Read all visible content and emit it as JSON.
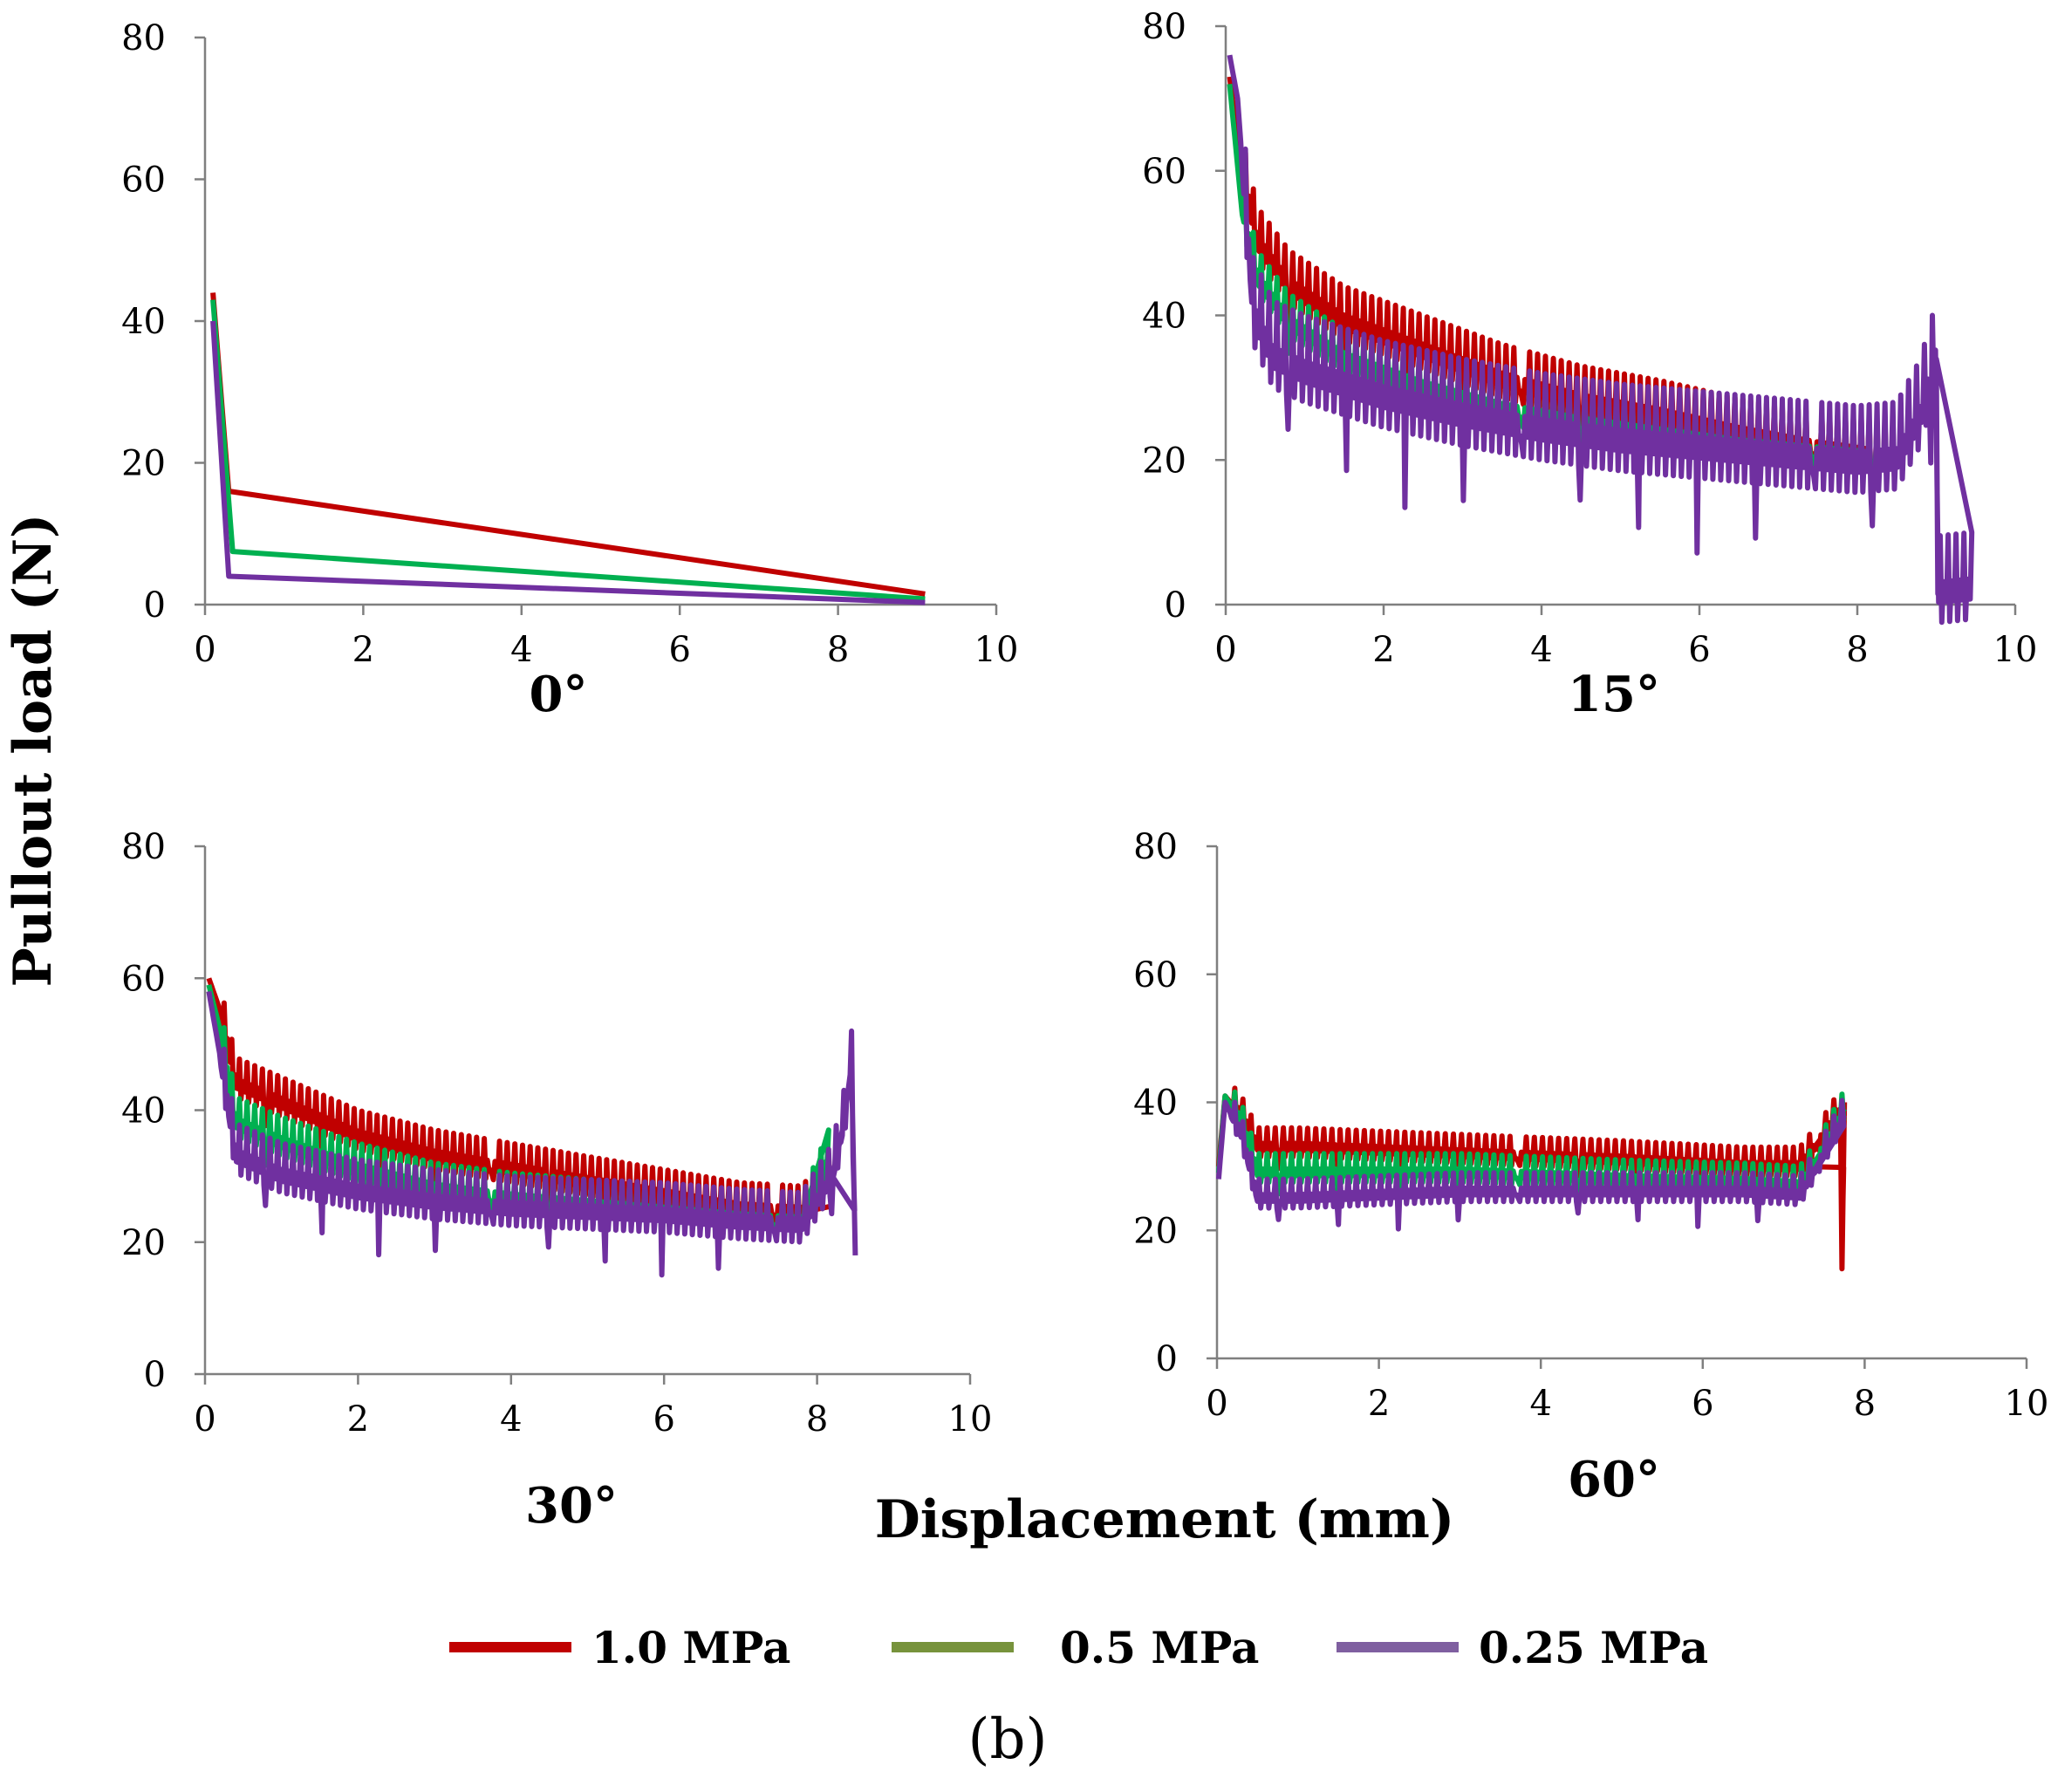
{
  "figure_label": "(b)",
  "ylabel": "Pullout load (N)",
  "xlabel": "Displacement (mm)",
  "legend": [
    {
      "label": "1.0 MPa",
      "color": "#c00000"
    },
    {
      "label": "0.5 MPa",
      "color": "#77933c"
    },
    {
      "label": "0.25 MPa",
      "color": "#7f5fa0"
    }
  ],
  "chart_data": [
    {
      "type": "line",
      "title": "0°",
      "xlabel": "Displacement (mm)",
      "ylabel": "Pullout load (N)",
      "xlim": [
        0,
        10
      ],
      "ylim": [
        0,
        80
      ],
      "xticks": [
        0,
        2,
        4,
        6,
        8,
        10
      ],
      "yticks": [
        0,
        20,
        40,
        60,
        80
      ],
      "series": [
        {
          "name": "1.0 MPa",
          "color": "#c00000",
          "points": [
            [
              0.1,
              44
            ],
            [
              0.3,
              16
            ],
            [
              9.1,
              1.5
            ]
          ]
        },
        {
          "name": "0.5 MPa",
          "color": "#00b050",
          "points": [
            [
              0.1,
              43
            ],
            [
              0.35,
              7.5
            ],
            [
              9.1,
              0.8
            ]
          ]
        },
        {
          "name": "0.25 MPa",
          "color": "#7030a0",
          "points": [
            [
              0.1,
              40
            ],
            [
              0.3,
              4
            ],
            [
              9.1,
              0.3
            ]
          ]
        }
      ]
    },
    {
      "type": "line",
      "title": "15°",
      "xlabel": "Displacement (mm)",
      "ylabel": "Pullout load (N)",
      "xlim": [
        0,
        10
      ],
      "ylim": [
        0,
        80
      ],
      "xticks": [
        0,
        2,
        4,
        6,
        8,
        10
      ],
      "yticks": [
        0,
        20,
        40,
        60,
        80
      ],
      "series": [
        {
          "name": "1.0 MPa",
          "color": "#c00000",
          "amp": 5,
          "points": [
            [
              0.05,
              73
            ],
            [
              0.2,
              60
            ],
            [
              0.4,
              50
            ],
            [
              0.8,
              44
            ],
            [
              1.5,
              39
            ],
            [
              2.5,
              35
            ],
            [
              3.5,
              31
            ],
            [
              4.5,
              28
            ],
            [
              5.5,
              26
            ],
            [
              6.5,
              23.5
            ],
            [
              7.5,
              21.5
            ],
            [
              8.5,
              20
            ]
          ]
        },
        {
          "name": "0.5 MPa",
          "color": "#00b050",
          "amp": 4,
          "points": [
            [
              0.05,
              72
            ],
            [
              0.2,
              55
            ],
            [
              0.4,
              45
            ],
            [
              0.8,
              39
            ],
            [
              1.5,
              34
            ],
            [
              2.5,
              30
            ],
            [
              3.5,
              27
            ],
            [
              4.5,
              25
            ],
            [
              5.5,
              23.5
            ],
            [
              6.5,
              22
            ],
            [
              7.5,
              21
            ],
            [
              8.5,
              20
            ]
          ]
        },
        {
          "name": "0.25 MPa",
          "color": "#7030a0",
          "amp": 8,
          "points": [
            [
              0.05,
              76
            ],
            [
              0.15,
              70
            ],
            [
              0.25,
              55
            ],
            [
              0.35,
              40
            ],
            [
              0.6,
              34
            ],
            [
              1,
              32
            ],
            [
              2,
              28.5
            ],
            [
              3,
              26
            ],
            [
              4,
              24
            ],
            [
              5,
              22.5
            ],
            [
              6,
              21.5
            ],
            [
              7,
              20.5
            ],
            [
              8,
              19.5
            ],
            [
              8.5,
              20
            ],
            [
              8.8,
              26
            ],
            [
              9.0,
              34
            ],
            [
              9.02,
              1.5
            ],
            [
              9.45,
              2
            ]
          ]
        }
      ]
    },
    {
      "type": "line",
      "title": "30°",
      "xlabel": "Displacement (mm)",
      "ylabel": "Pullout load (N)",
      "xlim": [
        0,
        10
      ],
      "ylim": [
        0,
        80
      ],
      "xticks": [
        0,
        2,
        4,
        6,
        8,
        10
      ],
      "yticks": [
        0,
        20,
        40,
        60,
        80
      ],
      "series": [
        {
          "name": "1.0 MPa",
          "color": "#c00000",
          "amp": 4,
          "points": [
            [
              0.05,
              60
            ],
            [
              0.2,
              55
            ],
            [
              0.4,
              44
            ],
            [
              1,
              41
            ],
            [
              2,
              36
            ],
            [
              3,
              33
            ],
            [
              4,
              31
            ],
            [
              5,
              29
            ],
            [
              6,
              27
            ],
            [
              7,
              25
            ],
            [
              7.8,
              24.5
            ],
            [
              8.2,
              30
            ]
          ]
        },
        {
          "name": "0.5 MPa",
          "color": "#00b050",
          "amp": 4,
          "points": [
            [
              0.05,
              59
            ],
            [
              0.2,
              52
            ],
            [
              0.4,
              38
            ],
            [
              1,
              35
            ],
            [
              2,
              31
            ],
            [
              3,
              28
            ],
            [
              4,
              26.5
            ],
            [
              5,
              25.5
            ],
            [
              6,
              24.5
            ],
            [
              7,
              23.5
            ],
            [
              7.8,
              23
            ],
            [
              8.15,
              33
            ]
          ]
        },
        {
          "name": "0.25 MPa",
          "color": "#7030a0",
          "amp": 5,
          "points": [
            [
              0.05,
              58
            ],
            [
              0.2,
              48
            ],
            [
              0.4,
              33
            ],
            [
              1,
              30
            ],
            [
              2,
              27.5
            ],
            [
              3,
              26
            ],
            [
              4,
              25
            ],
            [
              5,
              24.5
            ],
            [
              6,
              24
            ],
            [
              7,
              23
            ],
            [
              7.8,
              22.5
            ],
            [
              8.2,
              30
            ],
            [
              8.35,
              38
            ],
            [
              8.45,
              47
            ],
            [
              8.5,
              18
            ]
          ]
        }
      ]
    },
    {
      "type": "line",
      "title": "60°",
      "xlabel": "Displacement (mm)",
      "ylabel": "Pullout load (N)",
      "xlim": [
        0,
        10
      ],
      "ylim": [
        0,
        80
      ],
      "xticks": [
        0,
        2,
        4,
        6,
        8,
        10
      ],
      "yticks": [
        0,
        20,
        40,
        60,
        80
      ],
      "series": [
        {
          "name": "1.0 MPa",
          "color": "#c00000",
          "amp": 3,
          "points": [
            [
              0.02,
              30
            ],
            [
              0.1,
              41
            ],
            [
              0.3,
              38
            ],
            [
              0.5,
              33
            ],
            [
              1,
              33
            ],
            [
              3,
              32
            ],
            [
              5,
              31
            ],
            [
              6.5,
              30
            ],
            [
              7.2,
              30
            ],
            [
              7.5,
              35
            ],
            [
              7.7,
              39
            ],
            [
              7.72,
              14
            ],
            [
              7.75,
              40
            ]
          ]
        },
        {
          "name": "0.5 MPa",
          "color": "#00b050",
          "amp": 3,
          "points": [
            [
              0.02,
              29
            ],
            [
              0.1,
              41
            ],
            [
              0.3,
              37
            ],
            [
              0.5,
              29
            ],
            [
              1,
              29
            ],
            [
              3,
              29
            ],
            [
              5,
              28
            ],
            [
              6.5,
              27.5
            ],
            [
              7.2,
              27
            ],
            [
              7.5,
              33
            ],
            [
              7.75,
              39
            ]
          ]
        },
        {
          "name": "0.25 MPa",
          "color": "#7030a0",
          "amp": 3,
          "points": [
            [
              0.02,
              28
            ],
            [
              0.1,
              40
            ],
            [
              0.3,
              35
            ],
            [
              0.5,
              25
            ],
            [
              1,
              25
            ],
            [
              3,
              26
            ],
            [
              5,
              26
            ],
            [
              6.5,
              26
            ],
            [
              7.2,
              25.5
            ],
            [
              7.5,
              32
            ],
            [
              7.75,
              38
            ]
          ]
        }
      ]
    }
  ]
}
